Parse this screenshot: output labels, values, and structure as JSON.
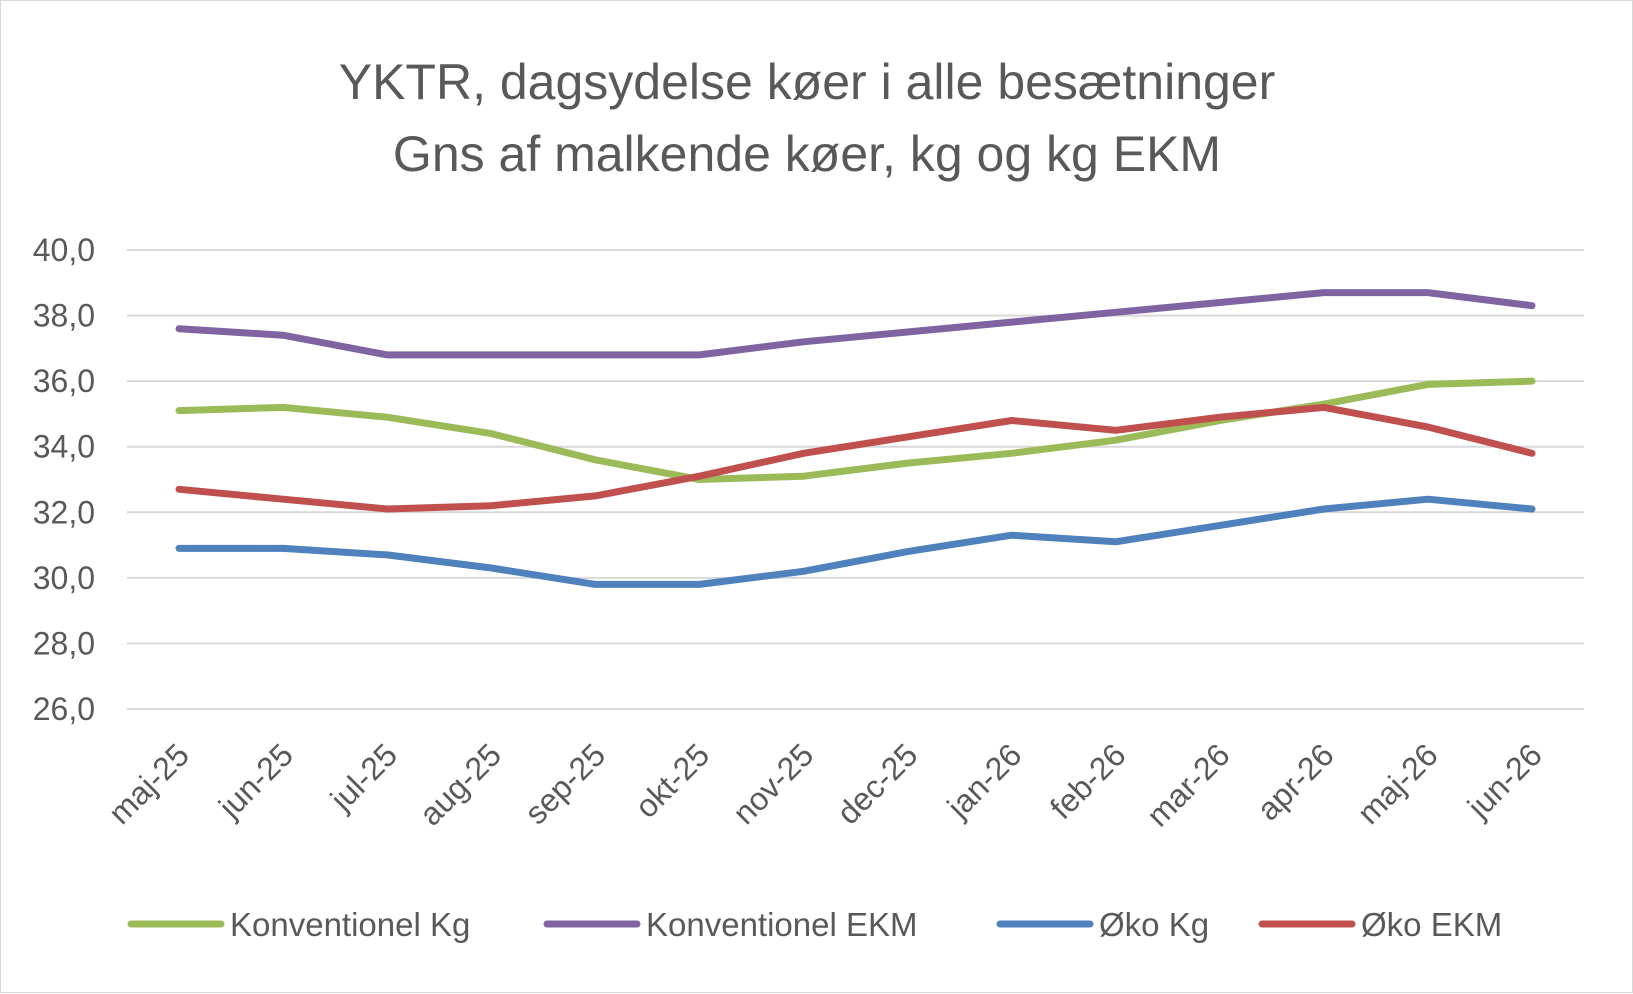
{
  "chart_data": {
    "type": "line",
    "title": [
      "YKTR, dagsydelse køer i alle besætninger",
      "Gns af malkende køer, kg og kg EKM"
    ],
    "categories": [
      "maj-25",
      "jun-25",
      "jul-25",
      "aug-25",
      "sep-25",
      "okt-25",
      "nov-25",
      "dec-25",
      "jan-26",
      "feb-26",
      "mar-26",
      "apr-26",
      "maj-26",
      "jun-26"
    ],
    "ylim": [
      26,
      40
    ],
    "yticks": [
      "40,0",
      "38,0",
      "36,0",
      "34,0",
      "32,0",
      "30,0",
      "28,0",
      "26,0"
    ],
    "ytick_values": [
      40,
      38,
      36,
      34,
      32,
      30,
      28,
      26
    ],
    "grid": true,
    "legend_position": "bottom",
    "series": [
      {
        "name": "Konventionel Kg",
        "color": "#9bbb59",
        "values": [
          35.1,
          35.2,
          34.9,
          34.4,
          33.6,
          33.0,
          33.1,
          33.5,
          33.8,
          34.2,
          34.8,
          35.3,
          35.9,
          36.0
        ]
      },
      {
        "name": "Konventionel EKM",
        "color": "#8064a2",
        "values": [
          37.6,
          37.4,
          36.8,
          36.8,
          36.8,
          36.8,
          37.2,
          37.5,
          37.8,
          38.1,
          38.4,
          38.7,
          38.7,
          38.3
        ]
      },
      {
        "name": "Øko Kg",
        "color": "#4f81bd",
        "values": [
          30.9,
          30.9,
          30.7,
          30.3,
          29.8,
          29.8,
          30.2,
          30.8,
          31.3,
          31.1,
          31.6,
          32.1,
          32.4,
          32.1
        ]
      },
      {
        "name": "Øko EKM",
        "color": "#c0504d",
        "values": [
          32.7,
          32.4,
          32.1,
          32.2,
          32.5,
          33.1,
          33.8,
          34.3,
          34.8,
          34.5,
          34.9,
          35.2,
          34.6,
          33.8
        ]
      }
    ]
  }
}
